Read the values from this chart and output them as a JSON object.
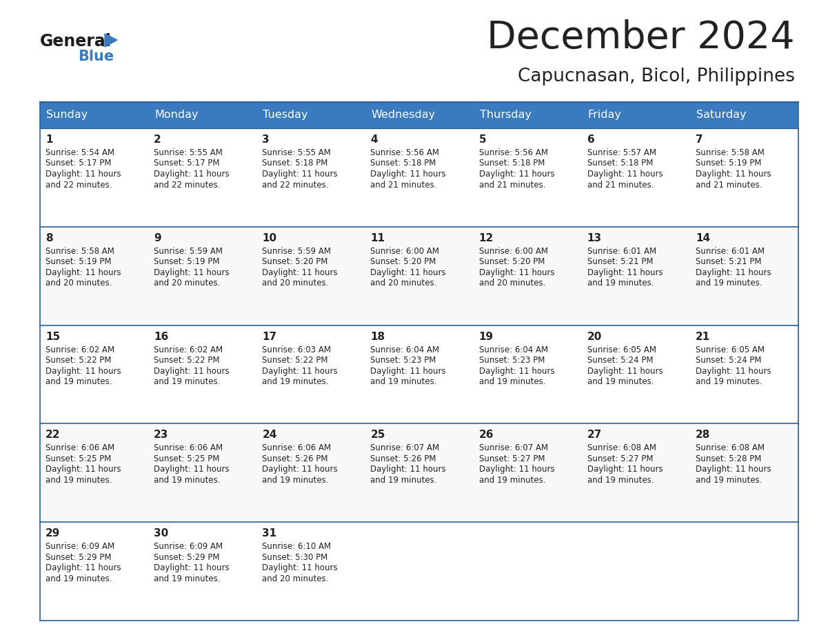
{
  "title": "December 2024",
  "subtitle": "Capucnasan, Bicol, Philippines",
  "header_color": "#3a7abf",
  "header_text_color": "#ffffff",
  "days_of_week": [
    "Sunday",
    "Monday",
    "Tuesday",
    "Wednesday",
    "Thursday",
    "Friday",
    "Saturday"
  ],
  "cell_bg_color": "#ffffff",
  "border_color": "#2a6099",
  "text_color": "#222222",
  "logo_blue_color": "#3a7abf",
  "calendar_data": [
    {
      "day": 1,
      "col": 0,
      "row": 0,
      "sunrise": "5:54 AM",
      "sunset": "5:17 PM",
      "daylight": "11 hours and 22 minutes."
    },
    {
      "day": 2,
      "col": 1,
      "row": 0,
      "sunrise": "5:55 AM",
      "sunset": "5:17 PM",
      "daylight": "11 hours and 22 minutes."
    },
    {
      "day": 3,
      "col": 2,
      "row": 0,
      "sunrise": "5:55 AM",
      "sunset": "5:18 PM",
      "daylight": "11 hours and 22 minutes."
    },
    {
      "day": 4,
      "col": 3,
      "row": 0,
      "sunrise": "5:56 AM",
      "sunset": "5:18 PM",
      "daylight": "11 hours and 21 minutes."
    },
    {
      "day": 5,
      "col": 4,
      "row": 0,
      "sunrise": "5:56 AM",
      "sunset": "5:18 PM",
      "daylight": "11 hours and 21 minutes."
    },
    {
      "day": 6,
      "col": 5,
      "row": 0,
      "sunrise": "5:57 AM",
      "sunset": "5:18 PM",
      "daylight": "11 hours and 21 minutes."
    },
    {
      "day": 7,
      "col": 6,
      "row": 0,
      "sunrise": "5:58 AM",
      "sunset": "5:19 PM",
      "daylight": "11 hours and 21 minutes."
    },
    {
      "day": 8,
      "col": 0,
      "row": 1,
      "sunrise": "5:58 AM",
      "sunset": "5:19 PM",
      "daylight": "11 hours and 20 minutes."
    },
    {
      "day": 9,
      "col": 1,
      "row": 1,
      "sunrise": "5:59 AM",
      "sunset": "5:19 PM",
      "daylight": "11 hours and 20 minutes."
    },
    {
      "day": 10,
      "col": 2,
      "row": 1,
      "sunrise": "5:59 AM",
      "sunset": "5:20 PM",
      "daylight": "11 hours and 20 minutes."
    },
    {
      "day": 11,
      "col": 3,
      "row": 1,
      "sunrise": "6:00 AM",
      "sunset": "5:20 PM",
      "daylight": "11 hours and 20 minutes."
    },
    {
      "day": 12,
      "col": 4,
      "row": 1,
      "sunrise": "6:00 AM",
      "sunset": "5:20 PM",
      "daylight": "11 hours and 20 minutes."
    },
    {
      "day": 13,
      "col": 5,
      "row": 1,
      "sunrise": "6:01 AM",
      "sunset": "5:21 PM",
      "daylight": "11 hours and 19 minutes."
    },
    {
      "day": 14,
      "col": 6,
      "row": 1,
      "sunrise": "6:01 AM",
      "sunset": "5:21 PM",
      "daylight": "11 hours and 19 minutes."
    },
    {
      "day": 15,
      "col": 0,
      "row": 2,
      "sunrise": "6:02 AM",
      "sunset": "5:22 PM",
      "daylight": "11 hours and 19 minutes."
    },
    {
      "day": 16,
      "col": 1,
      "row": 2,
      "sunrise": "6:02 AM",
      "sunset": "5:22 PM",
      "daylight": "11 hours and 19 minutes."
    },
    {
      "day": 17,
      "col": 2,
      "row": 2,
      "sunrise": "6:03 AM",
      "sunset": "5:22 PM",
      "daylight": "11 hours and 19 minutes."
    },
    {
      "day": 18,
      "col": 3,
      "row": 2,
      "sunrise": "6:04 AM",
      "sunset": "5:23 PM",
      "daylight": "11 hours and 19 minutes."
    },
    {
      "day": 19,
      "col": 4,
      "row": 2,
      "sunrise": "6:04 AM",
      "sunset": "5:23 PM",
      "daylight": "11 hours and 19 minutes."
    },
    {
      "day": 20,
      "col": 5,
      "row": 2,
      "sunrise": "6:05 AM",
      "sunset": "5:24 PM",
      "daylight": "11 hours and 19 minutes."
    },
    {
      "day": 21,
      "col": 6,
      "row": 2,
      "sunrise": "6:05 AM",
      "sunset": "5:24 PM",
      "daylight": "11 hours and 19 minutes."
    },
    {
      "day": 22,
      "col": 0,
      "row": 3,
      "sunrise": "6:06 AM",
      "sunset": "5:25 PM",
      "daylight": "11 hours and 19 minutes."
    },
    {
      "day": 23,
      "col": 1,
      "row": 3,
      "sunrise": "6:06 AM",
      "sunset": "5:25 PM",
      "daylight": "11 hours and 19 minutes."
    },
    {
      "day": 24,
      "col": 2,
      "row": 3,
      "sunrise": "6:06 AM",
      "sunset": "5:26 PM",
      "daylight": "11 hours and 19 minutes."
    },
    {
      "day": 25,
      "col": 3,
      "row": 3,
      "sunrise": "6:07 AM",
      "sunset": "5:26 PM",
      "daylight": "11 hours and 19 minutes."
    },
    {
      "day": 26,
      "col": 4,
      "row": 3,
      "sunrise": "6:07 AM",
      "sunset": "5:27 PM",
      "daylight": "11 hours and 19 minutes."
    },
    {
      "day": 27,
      "col": 5,
      "row": 3,
      "sunrise": "6:08 AM",
      "sunset": "5:27 PM",
      "daylight": "11 hours and 19 minutes."
    },
    {
      "day": 28,
      "col": 6,
      "row": 3,
      "sunrise": "6:08 AM",
      "sunset": "5:28 PM",
      "daylight": "11 hours and 19 minutes."
    },
    {
      "day": 29,
      "col": 0,
      "row": 4,
      "sunrise": "6:09 AM",
      "sunset": "5:29 PM",
      "daylight": "11 hours and 19 minutes."
    },
    {
      "day": 30,
      "col": 1,
      "row": 4,
      "sunrise": "6:09 AM",
      "sunset": "5:29 PM",
      "daylight": "11 hours and 19 minutes."
    },
    {
      "day": 31,
      "col": 2,
      "row": 4,
      "sunrise": "6:10 AM",
      "sunset": "5:30 PM",
      "daylight": "11 hours and 20 minutes."
    }
  ]
}
